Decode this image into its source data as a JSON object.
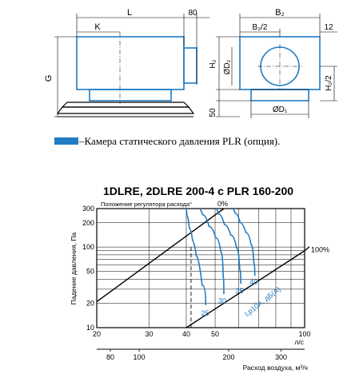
{
  "drawing": {
    "dim_L": "L",
    "dim_80": "80",
    "dim_K": "K",
    "dim_G": "G",
    "dim_50": "50",
    "dim_B2": "B₂",
    "dim_B2_half": "B₂/2",
    "dim_12": "12",
    "dim_H2": "H₂",
    "dim_H2_half": "H₂/2",
    "dim_D2": "ØD₂",
    "dim_D1": "ØD₁"
  },
  "legend": {
    "text": "–Камера статического давления PLR (опция).",
    "swatch_color": "#1f7cc4"
  },
  "chart_data": {
    "type": "line",
    "title": "1DLRE, 2DLRE 200-4 с PLR 160-200",
    "subtitle": "Положение регулятора расхода°",
    "ylabel": "Падение давления, Па",
    "xlabel_primary_unit": "л/с",
    "xlabel_secondary": "Расход воздуха, м³/ч",
    "x_scale": "log",
    "y_scale": "log",
    "xlim": [
      20,
      100
    ],
    "ylim": [
      10,
      300
    ],
    "x_ticks": [
      "20",
      "30",
      "40",
      "50",
      "100"
    ],
    "x_ticks_values": [
      20,
      30,
      40,
      50,
      100
    ],
    "x2_ticks": [
      "80",
      "100",
      "200",
      "300"
    ],
    "x2_ticks_values": [
      80,
      100,
      200,
      300
    ],
    "y_ticks": [
      "10",
      "20",
      "50",
      "100",
      "200",
      "300"
    ],
    "y_ticks_values": [
      10,
      20,
      50,
      100,
      200,
      300
    ],
    "grid": true,
    "boundary_labels": [
      "0%",
      "100%"
    ],
    "boundary_lines": [
      {
        "name": "0%",
        "x": [
          20,
          53.5
        ],
        "y": [
          21,
          300
        ]
      },
      {
        "name": "100%",
        "x": [
          40,
          100
        ],
        "y": [
          10,
          90
        ]
      }
    ],
    "dashed_line_x": 41.5,
    "noise_label": "Lp10A, дБ(А)",
    "noise_labels": [
      "25",
      "30",
      "35",
      "40"
    ],
    "series": [
      {
        "name": "25",
        "x": [
          46.5,
          44,
          42.5,
          41.5,
          40.5,
          40
        ],
        "y": [
          19,
          60,
          100,
          145,
          200,
          300
        ]
      },
      {
        "name": "30",
        "x": [
          53.5,
          53,
          51.5,
          49,
          46.5,
          44.5
        ],
        "y": [
          26,
          70,
          110,
          155,
          210,
          300
        ]
      },
      {
        "name": "35",
        "x": [
          61,
          60,
          58,
          55,
          52.5,
          50.5
        ],
        "y": [
          35,
          80,
          120,
          165,
          220,
          300
        ]
      },
      {
        "name": "40",
        "x": [
          68,
          67,
          65,
          62,
          59.5,
          57.5
        ],
        "y": [
          44,
          90,
          130,
          175,
          230,
          300
        ]
      }
    ]
  }
}
